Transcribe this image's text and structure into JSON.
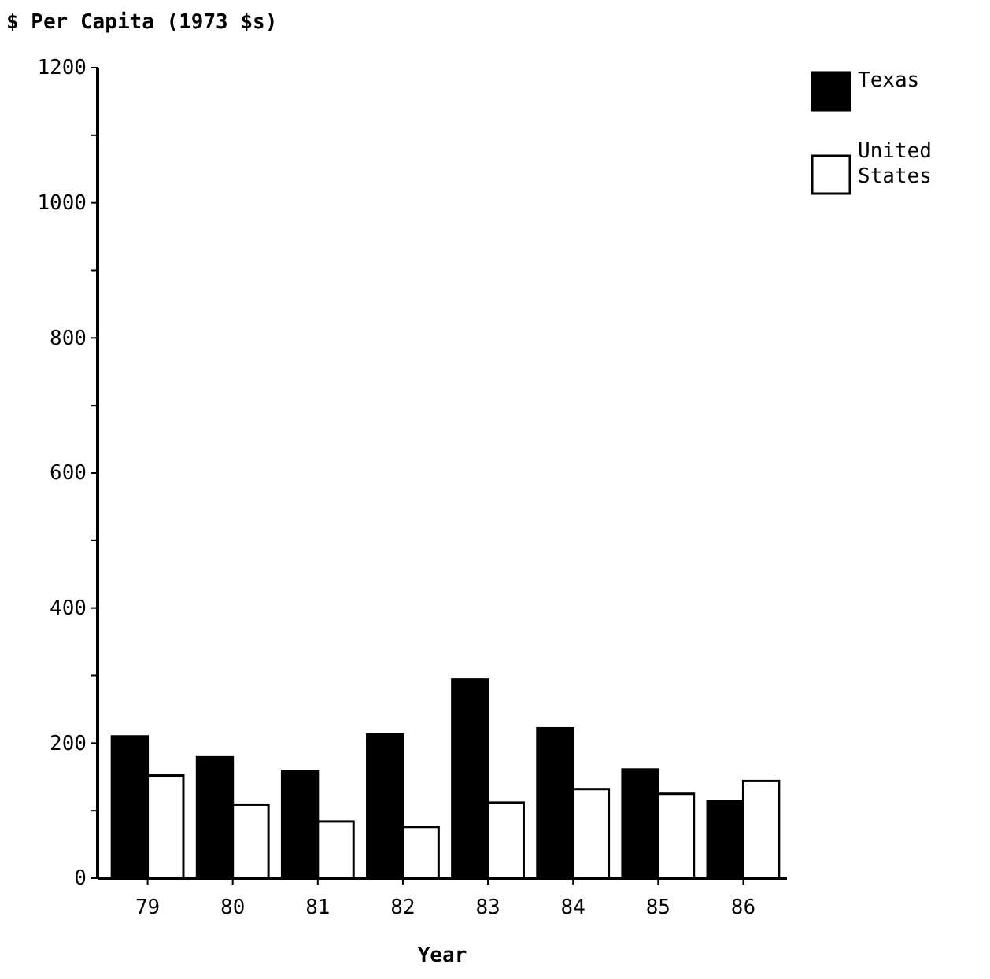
{
  "chart_data": {
    "type": "bar",
    "ylabel": "$ Per Capita (1973 $s)",
    "xlabel": "Year",
    "categories": [
      "79",
      "80",
      "81",
      "82",
      "83",
      "84",
      "85",
      "86"
    ],
    "series": [
      {
        "name": "Texas",
        "color": "#000000",
        "values": [
          210,
          179,
          159,
          213,
          294,
          222,
          161,
          114
        ]
      },
      {
        "name": "United States",
        "color": "#ffffff",
        "values": [
          152,
          109,
          84,
          76,
          112,
          132,
          125,
          144
        ]
      }
    ],
    "ylim": [
      0,
      1200
    ],
    "yticks": [
      0,
      {
        "value": 100,
        "label": null
      },
      200,
      {
        "value": 300,
        "label": null
      },
      400,
      {
        "value": 500,
        "label": null
      },
      600,
      {
        "value": 700,
        "label": null
      },
      800,
      {
        "value": 900,
        "label": null
      },
      1000,
      {
        "value": 1100,
        "label": null
      },
      1200
    ],
    "legend": "top right",
    "grid": false
  }
}
